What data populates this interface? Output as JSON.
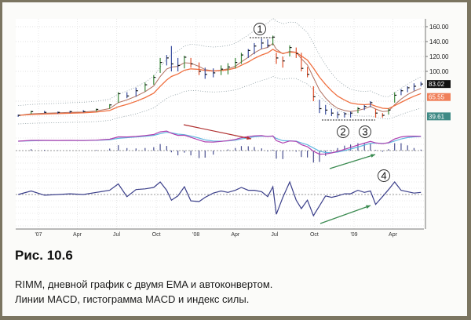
{
  "caption": {
    "figure": "Рис. 10.6",
    "line1": "RIMM, дневной график с двумя EMA и автоконвертом.",
    "line2": "Линии MACD, гистограмма MACD и индекс силы."
  },
  "chart_data": {
    "type": "ohlc",
    "x_ticks": [
      {
        "label": "'07",
        "date": "2007-01-01"
      },
      {
        "label": "Apr",
        "date": "2007-04-01"
      },
      {
        "label": "Jul",
        "date": "2007-07-01"
      },
      {
        "label": "Oct",
        "date": "2007-10-01"
      },
      {
        "label": "'08",
        "date": "2008-01-01"
      },
      {
        "label": "Apr",
        "date": "2008-04-01"
      },
      {
        "label": "Jul",
        "date": "2008-07-01"
      },
      {
        "label": "Oct",
        "date": "2008-10-01"
      },
      {
        "label": "'09",
        "date": "2009-01-01"
      },
      {
        "label": "Apr",
        "date": "2009-04-01"
      }
    ],
    "y_ticks": [
      "160.00",
      "140.00",
      "120.00",
      "100.00"
    ],
    "y_tick_values": [
      160,
      140,
      120,
      100
    ],
    "ylim": [
      30,
      170
    ],
    "grid": true,
    "last_values": [
      {
        "label": "83.02",
        "color": "#111111"
      },
      {
        "label": "65.55",
        "color": "#f0805a"
      },
      {
        "label": "39.61",
        "color": "#3f8a85"
      }
    ],
    "colors": {
      "up": "#3a8a3a",
      "neutral": "#3b4fa0",
      "down": "#e0502a",
      "ema_fast": "#b07060",
      "ema_slow": "#f07040",
      "envelope": "#8a9aa0",
      "macd": "#b040b0",
      "signal": "#60b8e0",
      "hist": "#4a5090",
      "force": "#3b3f8a",
      "arrow_red": "#b03030",
      "arrow_green": "#3a8a50"
    },
    "bars": [
      [
        "2006-11-15",
        39,
        42,
        41
      ],
      [
        "2006-12-15",
        43,
        47,
        46
      ],
      [
        "2007-01-15",
        44,
        47,
        45
      ],
      [
        "2007-02-15",
        43,
        46,
        45
      ],
      [
        "2007-03-15",
        44,
        47,
        46
      ],
      [
        "2007-04-15",
        45,
        48,
        46
      ],
      [
        "2007-05-15",
        46,
        50,
        49
      ],
      [
        "2007-06-15",
        50,
        56,
        55
      ],
      [
        "2007-07-05",
        58,
        72,
        70
      ],
      [
        "2007-07-25",
        64,
        72,
        67
      ],
      [
        "2007-08-15",
        66,
        78,
        74
      ],
      [
        "2007-09-05",
        73,
        85,
        82
      ],
      [
        "2007-09-25",
        82,
        95,
        92
      ],
      [
        "2007-10-10",
        98,
        118,
        112
      ],
      [
        "2007-10-25",
        108,
        122,
        118
      ],
      [
        "2007-11-05",
        100,
        134,
        110
      ],
      [
        "2007-11-20",
        100,
        118,
        108
      ],
      [
        "2007-12-05",
        104,
        121,
        119
      ],
      [
        "2007-12-20",
        105,
        118,
        110
      ],
      [
        "2008-01-08",
        95,
        112,
        100
      ],
      [
        "2008-01-22",
        90,
        105,
        96
      ],
      [
        "2008-02-10",
        92,
        104,
        98
      ],
      [
        "2008-02-28",
        95,
        108,
        103
      ],
      [
        "2008-03-15",
        96,
        111,
        106
      ],
      [
        "2008-04-01",
        104,
        118,
        112
      ],
      [
        "2008-04-15",
        110,
        125,
        122
      ],
      [
        "2008-05-01",
        118,
        130,
        128
      ],
      [
        "2008-05-15",
        123,
        138,
        134
      ],
      [
        "2008-06-01",
        130,
        144,
        138
      ],
      [
        "2008-06-15",
        132,
        143,
        135
      ],
      [
        "2008-06-27",
        135,
        148,
        146
      ],
      [
        "2008-07-05",
        110,
        125,
        118
      ],
      [
        "2008-07-20",
        105,
        120,
        114
      ],
      [
        "2008-08-05",
        120,
        135,
        132
      ],
      [
        "2008-08-20",
        118,
        132,
        124
      ],
      [
        "2008-09-01",
        100,
        125,
        104
      ],
      [
        "2008-09-15",
        92,
        106,
        96
      ],
      [
        "2008-09-29",
        60,
        80,
        66
      ],
      [
        "2008-10-13",
        44,
        62,
        50
      ],
      [
        "2008-10-27",
        42,
        55,
        48
      ],
      [
        "2008-11-10",
        40,
        50,
        44
      ],
      [
        "2008-11-24",
        37,
        46,
        42
      ],
      [
        "2008-12-10",
        38,
        45,
        43
      ],
      [
        "2008-12-24",
        38,
        46,
        44
      ],
      [
        "2009-01-10",
        44,
        52,
        50
      ],
      [
        "2009-01-25",
        48,
        55,
        53
      ],
      [
        "2009-02-08",
        52,
        60,
        58
      ],
      [
        "2009-02-20",
        38,
        50,
        44
      ],
      [
        "2009-03-08",
        38,
        44,
        41
      ],
      [
        "2009-03-22",
        42,
        50,
        48
      ],
      [
        "2009-04-05",
        58,
        72,
        68
      ],
      [
        "2009-04-20",
        68,
        76,
        74
      ],
      [
        "2009-05-05",
        72,
        80,
        78
      ],
      [
        "2009-05-20",
        74,
        84,
        80
      ],
      [
        "2009-06-05",
        80,
        86,
        83
      ]
    ],
    "bar_fields": [
      "date",
      "low",
      "high",
      "close"
    ],
    "annotations": [
      {
        "label": "1",
        "date": "2008-06-10",
        "price": 156
      },
      {
        "label": "2",
        "date": "2008-11-20",
        "price": 30
      },
      {
        "label": "3",
        "date": "2009-01-10",
        "price": 30
      },
      {
        "label": "4",
        "date": "2009-02-25",
        "panel": "force"
      }
    ]
  }
}
